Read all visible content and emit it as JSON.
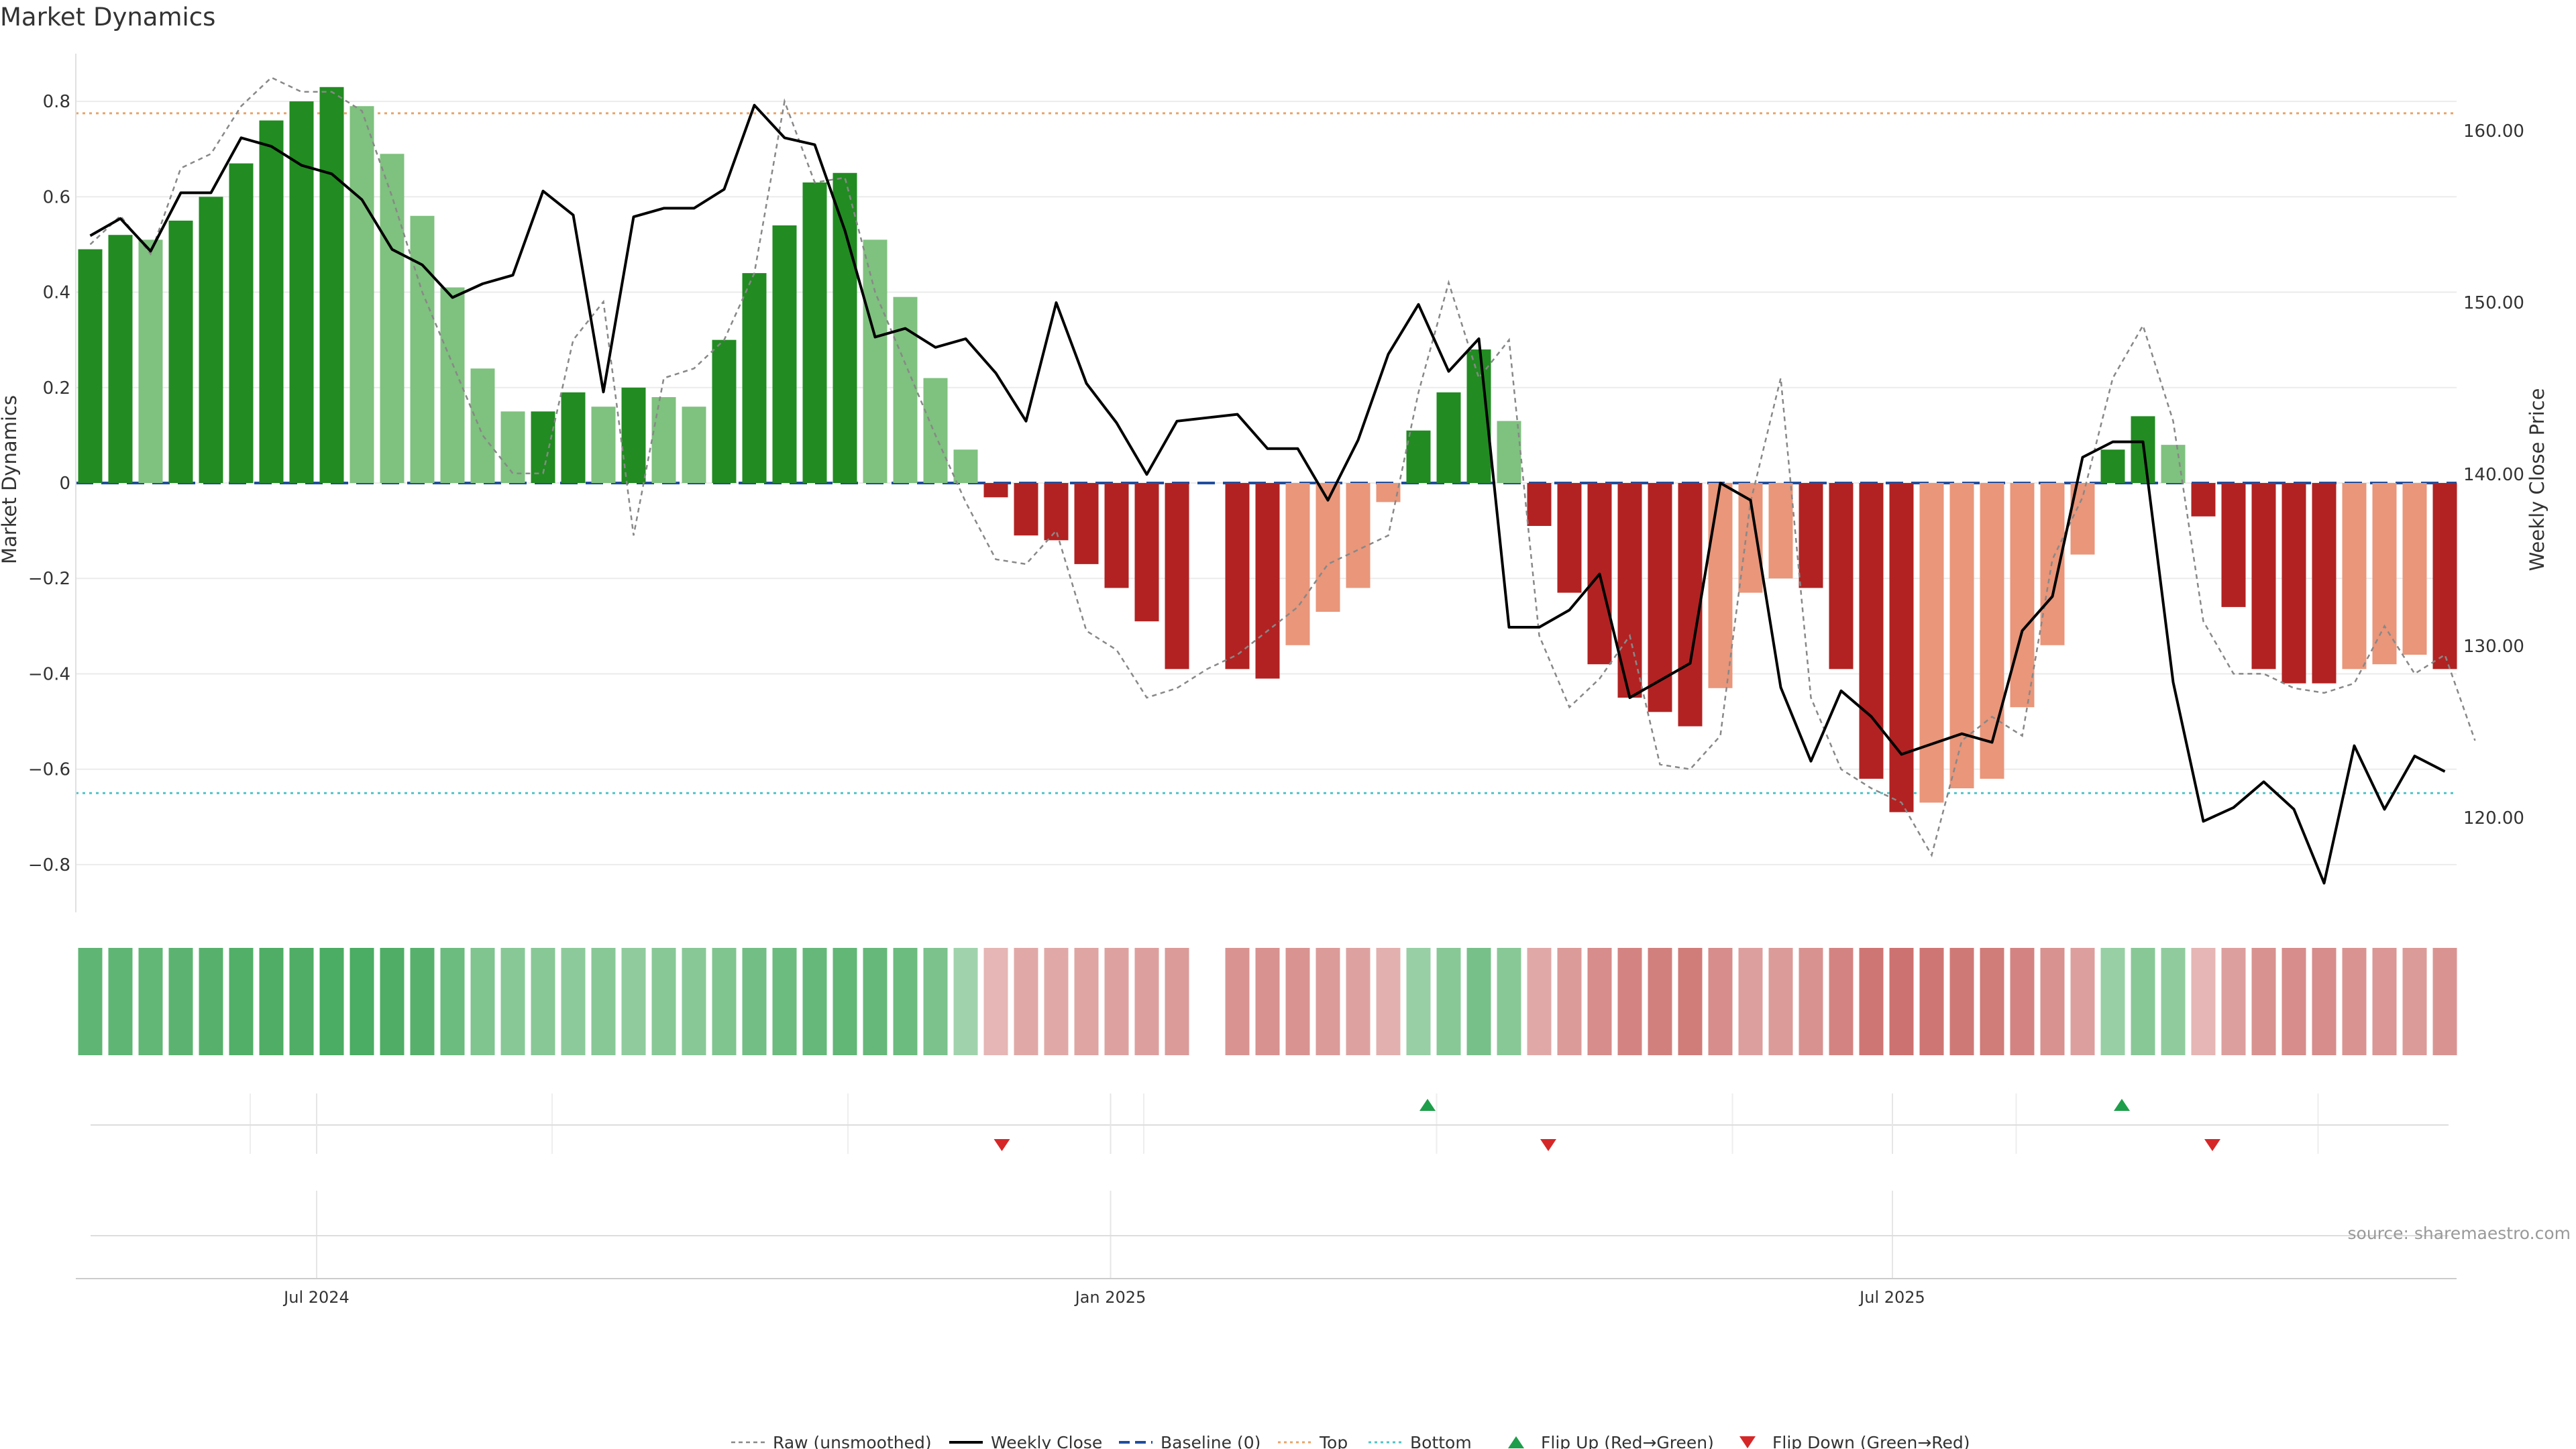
{
  "chart_data": {
    "type": "bar",
    "title": "Market Dynamics",
    "ylabel_left": "Market Dynamics",
    "ylabel_right": "Weekly Close Price",
    "source": "source: sharemaestro.com",
    "ylim_left": [
      -0.9,
      0.9
    ],
    "ylim_right": [
      114.5,
      164.5
    ],
    "yticks_left": [
      {
        "v": 0.8,
        "label": "0.8"
      },
      {
        "v": 0.6,
        "label": "0.6"
      },
      {
        "v": 0.4,
        "label": "0.4"
      },
      {
        "v": 0.2,
        "label": "0.2"
      },
      {
        "v": 0,
        "label": "0"
      },
      {
        "v": -0.2,
        "label": "−0.2"
      },
      {
        "v": -0.4,
        "label": "−0.4"
      },
      {
        "v": -0.6,
        "label": "−0.6"
      },
      {
        "v": -0.8,
        "label": "−0.8"
      }
    ],
    "yticks_right": [
      {
        "v": 160,
        "label": "160.00"
      },
      {
        "v": 150,
        "label": "150.00"
      },
      {
        "v": 140,
        "label": "140.00"
      },
      {
        "v": 130,
        "label": "130.00"
      },
      {
        "v": 120,
        "label": "120.00"
      }
    ],
    "xticks": [
      {
        "week": 7.5,
        "label": "Jul 2024"
      },
      {
        "week": 33.8,
        "label": "Jan 2025"
      },
      {
        "week": 59.7,
        "label": "Jul 2025"
      }
    ],
    "top_line": 0.775,
    "bottom_line": -0.65,
    "baseline": 0,
    "momentum": [
      {
        "w": 0,
        "v": 0.49,
        "c": "g"
      },
      {
        "w": 1,
        "v": 0.52,
        "c": "g"
      },
      {
        "w": 2,
        "v": 0.51,
        "c": "lg"
      },
      {
        "w": 3,
        "v": 0.55,
        "c": "g"
      },
      {
        "w": 4,
        "v": 0.6,
        "c": "g"
      },
      {
        "w": 5,
        "v": 0.67,
        "c": "g"
      },
      {
        "w": 6,
        "v": 0.76,
        "c": "g"
      },
      {
        "w": 7,
        "v": 0.8,
        "c": "g"
      },
      {
        "w": 8,
        "v": 0.83,
        "c": "g"
      },
      {
        "w": 9,
        "v": 0.79,
        "c": "lg"
      },
      {
        "w": 10,
        "v": 0.69,
        "c": "lg"
      },
      {
        "w": 11,
        "v": 0.56,
        "c": "lg"
      },
      {
        "w": 12,
        "v": 0.41,
        "c": "lg"
      },
      {
        "w": 13,
        "v": 0.24,
        "c": "lg"
      },
      {
        "w": 14,
        "v": 0.15,
        "c": "lg"
      },
      {
        "w": 15,
        "v": 0.15,
        "c": "g"
      },
      {
        "w": 16,
        "v": 0.19,
        "c": "g"
      },
      {
        "w": 17,
        "v": 0.16,
        "c": "lg"
      },
      {
        "w": 18,
        "v": 0.2,
        "c": "g"
      },
      {
        "w": 19,
        "v": 0.18,
        "c": "lg"
      },
      {
        "w": 20,
        "v": 0.16,
        "c": "lg"
      },
      {
        "w": 21,
        "v": 0.3,
        "c": "g"
      },
      {
        "w": 22,
        "v": 0.44,
        "c": "g"
      },
      {
        "w": 23,
        "v": 0.54,
        "c": "g"
      },
      {
        "w": 24,
        "v": 0.63,
        "c": "g"
      },
      {
        "w": 25,
        "v": 0.65,
        "c": "g"
      },
      {
        "w": 26,
        "v": 0.51,
        "c": "lg"
      },
      {
        "w": 27,
        "v": 0.39,
        "c": "lg"
      },
      {
        "w": 28,
        "v": 0.22,
        "c": "lg"
      },
      {
        "w": 29,
        "v": 0.07,
        "c": "lg"
      },
      {
        "w": 30,
        "v": -0.03,
        "c": "r"
      },
      {
        "w": 31,
        "v": -0.11,
        "c": "r"
      },
      {
        "w": 32,
        "v": -0.12,
        "c": "r"
      },
      {
        "w": 33,
        "v": -0.17,
        "c": "r"
      },
      {
        "w": 34,
        "v": -0.22,
        "c": "r"
      },
      {
        "w": 35,
        "v": -0.29,
        "c": "r"
      },
      {
        "w": 36,
        "v": -0.39,
        "c": "r"
      },
      {
        "w": 38,
        "v": -0.39,
        "c": "r"
      },
      {
        "w": 39,
        "v": -0.41,
        "c": "r"
      },
      {
        "w": 40,
        "v": -0.34,
        "c": "lr"
      },
      {
        "w": 41,
        "v": -0.27,
        "c": "lr"
      },
      {
        "w": 42,
        "v": -0.22,
        "c": "lr"
      },
      {
        "w": 43,
        "v": -0.04,
        "c": "lr"
      },
      {
        "w": 44,
        "v": 0.11,
        "c": "g"
      },
      {
        "w": 45,
        "v": 0.19,
        "c": "g"
      },
      {
        "w": 46,
        "v": 0.28,
        "c": "g"
      },
      {
        "w": 47,
        "v": 0.13,
        "c": "lg"
      },
      {
        "w": 48,
        "v": -0.09,
        "c": "r"
      },
      {
        "w": 49,
        "v": -0.23,
        "c": "r"
      },
      {
        "w": 50,
        "v": -0.38,
        "c": "r"
      },
      {
        "w": 51,
        "v": -0.45,
        "c": "r"
      },
      {
        "w": 52,
        "v": -0.48,
        "c": "r"
      },
      {
        "w": 53,
        "v": -0.51,
        "c": "r"
      },
      {
        "w": 54,
        "v": -0.43,
        "c": "lr"
      },
      {
        "w": 55,
        "v": -0.23,
        "c": "lr"
      },
      {
        "w": 56,
        "v": -0.2,
        "c": "lr"
      },
      {
        "w": 57,
        "v": -0.22,
        "c": "r"
      },
      {
        "w": 58,
        "v": -0.39,
        "c": "r"
      },
      {
        "w": 59,
        "v": -0.62,
        "c": "r"
      },
      {
        "w": 60,
        "v": -0.69,
        "c": "r"
      },
      {
        "w": 61,
        "v": -0.67,
        "c": "lr"
      },
      {
        "w": 62,
        "v": -0.64,
        "c": "lr"
      },
      {
        "w": 63,
        "v": -0.62,
        "c": "lr"
      },
      {
        "w": 64,
        "v": -0.47,
        "c": "lr"
      },
      {
        "w": 65,
        "v": -0.34,
        "c": "lr"
      },
      {
        "w": 66,
        "v": -0.15,
        "c": "lr"
      },
      {
        "w": 67,
        "v": 0.07,
        "c": "g"
      },
      {
        "w": 68,
        "v": 0.14,
        "c": "g"
      },
      {
        "w": 69,
        "v": 0.08,
        "c": "lg"
      },
      {
        "w": 70,
        "v": -0.07,
        "c": "r"
      },
      {
        "w": 71,
        "v": -0.26,
        "c": "r"
      },
      {
        "w": 72,
        "v": -0.39,
        "c": "r"
      },
      {
        "w": 73,
        "v": -0.42,
        "c": "r"
      },
      {
        "w": 74,
        "v": -0.42,
        "c": "r"
      },
      {
        "w": 75,
        "v": -0.39,
        "c": "lr"
      },
      {
        "w": 76,
        "v": -0.38,
        "c": "lr"
      },
      {
        "w": 77,
        "v": -0.36,
        "c": "lr"
      },
      {
        "w": 78,
        "v": -0.39,
        "c": "r"
      }
    ],
    "raw_unsmoothed": [
      [
        0,
        0.5
      ],
      [
        1,
        0.56
      ],
      [
        2,
        0.48
      ],
      [
        3,
        0.66
      ],
      [
        4,
        0.69
      ],
      [
        5,
        0.79
      ],
      [
        6,
        0.85
      ],
      [
        7,
        0.82
      ],
      [
        8,
        0.82
      ],
      [
        9,
        0.78
      ],
      [
        10,
        0.6
      ],
      [
        11,
        0.4
      ],
      [
        12,
        0.25
      ],
      [
        13,
        0.1
      ],
      [
        14,
        0.02
      ],
      [
        15,
        0.02
      ],
      [
        16,
        0.3
      ],
      [
        17,
        0.38
      ],
      [
        18,
        -0.11
      ],
      [
        19,
        0.22
      ],
      [
        20,
        0.24
      ],
      [
        21,
        0.3
      ],
      [
        22,
        0.44
      ],
      [
        23,
        0.8
      ],
      [
        24,
        0.63
      ],
      [
        25,
        0.64
      ],
      [
        26,
        0.4
      ],
      [
        27,
        0.25
      ],
      [
        28,
        0.1
      ],
      [
        29,
        -0.04
      ],
      [
        30,
        -0.16
      ],
      [
        31,
        -0.17
      ],
      [
        32,
        -0.1
      ],
      [
        33,
        -0.31
      ],
      [
        34,
        -0.35
      ],
      [
        35,
        -0.45
      ],
      [
        36,
        -0.43
      ],
      [
        37,
        -0.39
      ],
      [
        38,
        -0.36
      ],
      [
        39,
        -0.31
      ],
      [
        40,
        -0.26
      ],
      [
        41,
        -0.17
      ],
      [
        42,
        -0.14
      ],
      [
        43,
        -0.11
      ],
      [
        44,
        0.19
      ],
      [
        45,
        0.42
      ],
      [
        46,
        0.22
      ],
      [
        47,
        0.3
      ],
      [
        48,
        -0.32
      ],
      [
        49,
        -0.47
      ],
      [
        50,
        -0.41
      ],
      [
        51,
        -0.32
      ],
      [
        52,
        -0.59
      ],
      [
        53,
        -0.6
      ],
      [
        54,
        -0.53
      ],
      [
        55,
        -0.04
      ],
      [
        56,
        0.22
      ],
      [
        57,
        -0.45
      ],
      [
        58,
        -0.6
      ],
      [
        59,
        -0.64
      ],
      [
        60,
        -0.67
      ],
      [
        61,
        -0.78
      ],
      [
        62,
        -0.54
      ],
      [
        63,
        -0.49
      ],
      [
        64,
        -0.53
      ],
      [
        65,
        -0.16
      ],
      [
        66,
        -0.03
      ],
      [
        67,
        0.22
      ],
      [
        68,
        0.33
      ],
      [
        69,
        0.13
      ],
      [
        70,
        -0.29
      ],
      [
        71,
        -0.4
      ],
      [
        72,
        -0.4
      ],
      [
        73,
        -0.43
      ],
      [
        74,
        -0.44
      ],
      [
        75,
        -0.42
      ],
      [
        76,
        -0.3
      ],
      [
        77,
        -0.4
      ],
      [
        78,
        -0.36
      ],
      [
        79,
        -0.54
      ]
    ],
    "weekly_close": [
      [
        0,
        153.9
      ],
      [
        1,
        154.9
      ],
      [
        2,
        153.0
      ],
      [
        3,
        156.4
      ],
      [
        4,
        156.4
      ],
      [
        5,
        159.6
      ],
      [
        6,
        159.1
      ],
      [
        7,
        158.0
      ],
      [
        8,
        157.5
      ],
      [
        9,
        156.0
      ],
      [
        10,
        153.1
      ],
      [
        11,
        152.2
      ],
      [
        12,
        150.3
      ],
      [
        13,
        151.1
      ],
      [
        14,
        151.6
      ],
      [
        15,
        156.5
      ],
      [
        16,
        155.1
      ],
      [
        17,
        144.8
      ],
      [
        18,
        155.0
      ],
      [
        19,
        155.5
      ],
      [
        20,
        155.5
      ],
      [
        21,
        156.6
      ],
      [
        22,
        161.5
      ],
      [
        23,
        159.6
      ],
      [
        24,
        159.2
      ],
      [
        25,
        154.2
      ],
      [
        26,
        148.0
      ],
      [
        27,
        148.5
      ],
      [
        28,
        147.4
      ],
      [
        29,
        147.9
      ],
      [
        30,
        145.9
      ],
      [
        31,
        143.1
      ],
      [
        32,
        150.0
      ],
      [
        33,
        145.3
      ],
      [
        34,
        143.0
      ],
      [
        35,
        140.0
      ],
      [
        36,
        143.1
      ],
      [
        37,
        143.3
      ],
      [
        38,
        143.5
      ],
      [
        39,
        141.5
      ],
      [
        40,
        141.5
      ],
      [
        41,
        138.5
      ],
      [
        42,
        142.0
      ],
      [
        43,
        147.0
      ],
      [
        44,
        149.9
      ],
      [
        45,
        146.0
      ],
      [
        46,
        147.9
      ],
      [
        47,
        131.1
      ],
      [
        48,
        131.1
      ],
      [
        49,
        132.1
      ],
      [
        50,
        134.2
      ],
      [
        51,
        127.0
      ],
      [
        52,
        128.0
      ],
      [
        53,
        129.0
      ],
      [
        54,
        139.5
      ],
      [
        55,
        138.5
      ],
      [
        56,
        127.6
      ],
      [
        57,
        123.3
      ],
      [
        58,
        127.4
      ],
      [
        59,
        125.9
      ],
      [
        60,
        123.7
      ],
      [
        61,
        124.3
      ],
      [
        62,
        124.9
      ],
      [
        63,
        124.4
      ],
      [
        64,
        130.9
      ],
      [
        65,
        132.9
      ],
      [
        66,
        141.0
      ],
      [
        67,
        141.9
      ],
      [
        68,
        141.9
      ],
      [
        69,
        127.9
      ],
      [
        70,
        119.8
      ],
      [
        71,
        120.6
      ],
      [
        72,
        122.1
      ],
      [
        73,
        120.5
      ],
      [
        74,
        116.2
      ],
      [
        75,
        124.2
      ],
      [
        76,
        120.5
      ],
      [
        77,
        123.6
      ],
      [
        78,
        122.7
      ]
    ],
    "regime_strip": [
      0.7,
      0.7,
      0.68,
      0.72,
      0.75,
      0.78,
      0.8,
      0.8,
      0.82,
      0.82,
      0.8,
      0.75,
      0.62,
      0.5,
      0.45,
      0.45,
      0.42,
      0.45,
      0.4,
      0.45,
      0.45,
      0.5,
      0.58,
      0.62,
      0.66,
      0.68,
      0.66,
      0.62,
      0.52,
      0.3,
      -0.25,
      -0.35,
      -0.35,
      -0.38,
      -0.4,
      -0.42,
      -0.45,
      null,
      -0.5,
      -0.52,
      -0.5,
      -0.45,
      -0.4,
      -0.3,
      0.35,
      0.45,
      0.55,
      0.45,
      -0.35,
      -0.45,
      -0.55,
      -0.62,
      -0.65,
      -0.68,
      -0.55,
      -0.42,
      -0.45,
      -0.52,
      -0.62,
      -0.72,
      -0.75,
      -0.72,
      -0.7,
      -0.68,
      -0.62,
      -0.52,
      -0.42,
      0.35,
      0.45,
      0.4,
      -0.25,
      -0.42,
      -0.52,
      -0.55,
      -0.55,
      -0.5,
      -0.48,
      -0.45,
      -0.5
    ],
    "flips_up": [
      44.3,
      67.3
    ],
    "flips_down": [
      30.2,
      48.3,
      70.3
    ],
    "legend": [
      {
        "key": "raw",
        "label": "Raw (unsmoothed)"
      },
      {
        "key": "close",
        "label": "Weekly Close"
      },
      {
        "key": "baseline",
        "label": "Baseline (0)"
      },
      {
        "key": "top",
        "label": "Top"
      },
      {
        "key": "bottom",
        "label": "Bottom"
      },
      {
        "key": "flipup",
        "label": "Flip Up (Red→Green)"
      },
      {
        "key": "flipdown",
        "label": "Flip Down (Green→Red)"
      }
    ],
    "colors": {
      "green": "#228b22",
      "light_green": "#7fc17f",
      "red": "#b22222",
      "light_red": "#e9967a",
      "close_line": "#000000",
      "raw_line": "#888888",
      "baseline": "#1f4e9e",
      "top": "#e8a46a",
      "bottom": "#4fc3c7",
      "flip_up": "#1e9e4a",
      "flip_down": "#d62728",
      "grid": "#ebebeb",
      "text": "#333333"
    }
  }
}
